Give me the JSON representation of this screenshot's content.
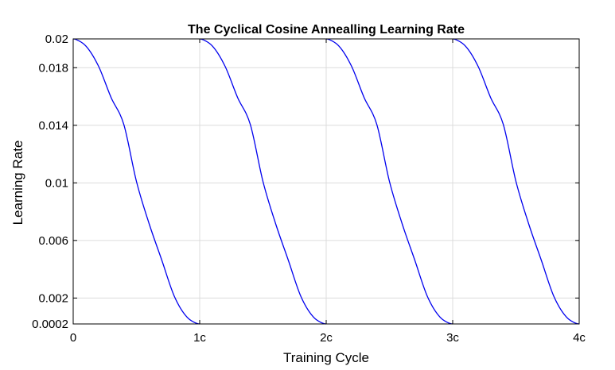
{
  "chart_data": {
    "type": "line",
    "title": "The Cyclical Cosine Annealling Learning Rate",
    "xlabel": "Training Cycle",
    "ylabel": "Learning Rate",
    "xlim": [
      0,
      4
    ],
    "ylim": [
      0.0002,
      0.02
    ],
    "x_ticks": [
      0,
      1,
      2,
      3,
      4
    ],
    "x_tick_labels": [
      "0",
      "1c",
      "2c",
      "3c",
      "4c"
    ],
    "y_ticks": [
      0.0002,
      0.002,
      0.006,
      0.01,
      0.014,
      0.018,
      0.02
    ],
    "y_tick_labels": [
      "0.0002",
      "0.002",
      "0.006",
      "0.01",
      "0.014",
      "0.018",
      "0.02"
    ],
    "grid": true,
    "series": [
      {
        "color": "#0000ee",
        "x": [
          0,
          0.1,
          0.2,
          0.3,
          0.4,
          0.5,
          0.6,
          0.7,
          0.8,
          0.9,
          1.0,
          1.0,
          1.1,
          1.2,
          1.3,
          1.4,
          1.5,
          1.6,
          1.7,
          1.8,
          1.9,
          2.0,
          2.0,
          2.1,
          2.2,
          2.3,
          2.4,
          2.5,
          2.6,
          2.7,
          2.8,
          2.9,
          3.0,
          3.0,
          3.1,
          3.2,
          3.3,
          3.4,
          3.5,
          3.6,
          3.7,
          3.8,
          3.9,
          4.0
        ],
        "y": [
          0.02,
          0.01951,
          0.01811,
          0.01592,
          0.01406,
          0.0101,
          0.00717,
          0.00464,
          0.00211,
          0.00067,
          0.0002,
          0.02,
          0.01951,
          0.01811,
          0.01592,
          0.01406,
          0.0101,
          0.00717,
          0.00464,
          0.00211,
          0.00067,
          0.0002,
          0.02,
          0.01951,
          0.01811,
          0.01592,
          0.01406,
          0.0101,
          0.00717,
          0.00464,
          0.00211,
          0.00067,
          0.0002,
          0.02,
          0.01951,
          0.01811,
          0.01592,
          0.01406,
          0.0101,
          0.00717,
          0.00464,
          0.00211,
          0.00067,
          0.0002
        ]
      }
    ]
  }
}
